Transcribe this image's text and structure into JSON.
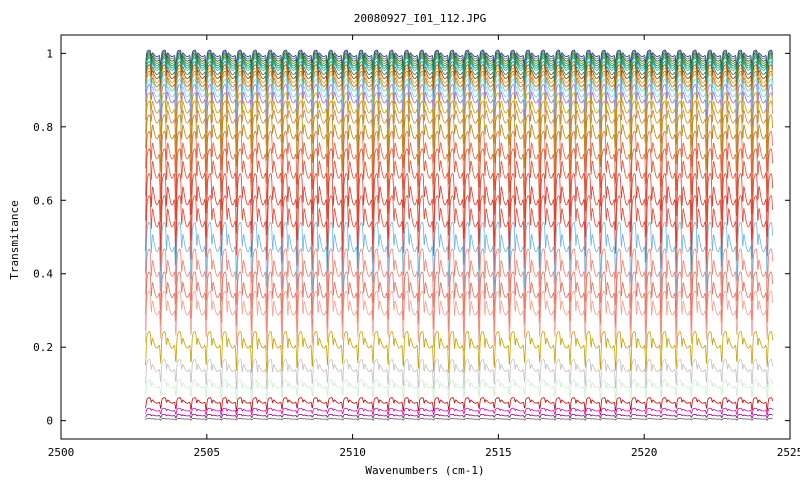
{
  "chart_data": {
    "type": "line",
    "title": "20080927_I01_112.JPG",
    "xlabel": "Wavenumbers (cm-1)",
    "ylabel": "Transmitance",
    "xlim": [
      2500,
      2525
    ],
    "ylim": [
      -0.05,
      1.05
    ],
    "x_ticks": [
      2500,
      2505,
      2510,
      2515,
      2520,
      2525
    ],
    "x_tick_labels": [
      "2500",
      "2505",
      "2510",
      "2515",
      "2520",
      "2525"
    ],
    "y_ticks": [
      0,
      0.2,
      0.4,
      0.6,
      0.8,
      1
    ],
    "y_tick_labels": [
      "0",
      "0.2",
      "0.4",
      "0.6",
      "0.8",
      "1"
    ],
    "grid": false,
    "legend": "none",
    "x_range": [
      2502.9,
      2524.4
    ],
    "line_spacing_cm1": 0.52,
    "series": [
      {
        "baseline": 1.0,
        "dip_depth": 0.035,
        "color": "#1f1fbf"
      },
      {
        "baseline": 0.995,
        "dip_depth": 0.04,
        "color": "#2e8b57"
      },
      {
        "baseline": 0.99,
        "dip_depth": 0.045,
        "color": "#3c3c3c"
      },
      {
        "baseline": 0.985,
        "dip_depth": 0.05,
        "color": "#6b8e23"
      },
      {
        "baseline": 0.98,
        "dip_depth": 0.055,
        "color": "#228b22"
      },
      {
        "baseline": 0.975,
        "dip_depth": 0.06,
        "color": "#00a0a0"
      },
      {
        "baseline": 0.97,
        "dip_depth": 0.065,
        "color": "#20b2aa"
      },
      {
        "baseline": 0.96,
        "dip_depth": 0.07,
        "color": "#556b2f"
      },
      {
        "baseline": 0.95,
        "dip_depth": 0.075,
        "color": "#8b4513"
      },
      {
        "baseline": 0.94,
        "dip_depth": 0.08,
        "color": "#daa520"
      },
      {
        "baseline": 0.93,
        "dip_depth": 0.085,
        "color": "#e06020"
      },
      {
        "baseline": 0.92,
        "dip_depth": 0.09,
        "color": "#66cdaa"
      },
      {
        "baseline": 0.905,
        "dip_depth": 0.095,
        "color": "#87ceeb"
      },
      {
        "baseline": 0.89,
        "dip_depth": 0.1,
        "color": "#9370db"
      },
      {
        "baseline": 0.865,
        "dip_depth": 0.11,
        "color": "#c8a000"
      },
      {
        "baseline": 0.84,
        "dip_depth": 0.12,
        "color": "#cd853f"
      },
      {
        "baseline": 0.8,
        "dip_depth": 0.13,
        "color": "#b8860b"
      },
      {
        "baseline": 0.75,
        "dip_depth": 0.15,
        "color": "#e8603c"
      },
      {
        "baseline": 0.7,
        "dip_depth": 0.16,
        "color": "#e05030"
      },
      {
        "baseline": 0.63,
        "dip_depth": 0.17,
        "color": "#dd3b2b"
      },
      {
        "baseline": 0.57,
        "dip_depth": 0.17,
        "color": "#e04838"
      },
      {
        "baseline": 0.5,
        "dip_depth": 0.16,
        "color": "#6cb4e0"
      },
      {
        "baseline": 0.43,
        "dip_depth": 0.15,
        "color": "#f08070"
      },
      {
        "baseline": 0.37,
        "dip_depth": 0.14,
        "color": "#e07060"
      },
      {
        "baseline": 0.32,
        "dip_depth": 0.13,
        "color": "#f4a090"
      },
      {
        "baseline": 0.22,
        "dip_depth": 0.09,
        "color": "#c8a000"
      },
      {
        "baseline": 0.15,
        "dip_depth": 0.065,
        "color": "#c0c0c0"
      },
      {
        "baseline": 0.1,
        "dip_depth": 0.045,
        "color": "#c8f0c8"
      },
      {
        "baseline": 0.055,
        "dip_depth": 0.03,
        "color": "#cc0000"
      },
      {
        "baseline": 0.03,
        "dip_depth": 0.015,
        "color": "#cc00cc"
      },
      {
        "baseline": 0.015,
        "dip_depth": 0.008,
        "color": "#8b008b"
      },
      {
        "baseline": 0.005,
        "dip_depth": 0.004,
        "color": "#606060"
      }
    ]
  }
}
